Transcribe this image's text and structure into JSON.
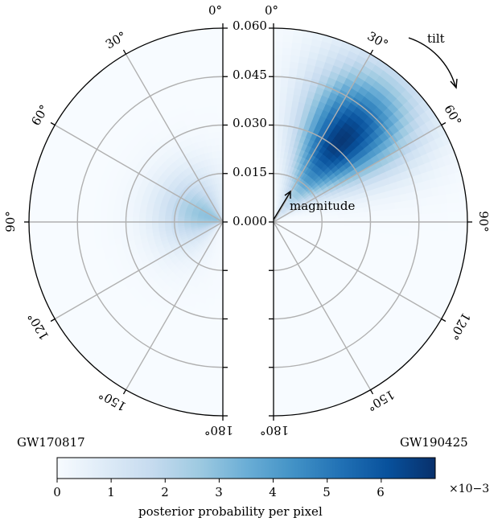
{
  "chart_data": {
    "type": "heatmap",
    "subtype": "half-polar",
    "panels": [
      {
        "name": "GW170817",
        "side": "left",
        "peak": {
          "magnitude": 0.005,
          "tilt_deg": 70
        },
        "peak_value": 2.9,
        "spread": {
          "magnitude": 0.011,
          "tilt_deg": 40
        }
      },
      {
        "name": "GW190425",
        "side": "right",
        "peak": {
          "magnitude": 0.033,
          "tilt_deg": 40
        },
        "peak_value": 6.8,
        "spread": {
          "magnitude": 0.016,
          "tilt_deg": 16
        }
      }
    ],
    "radial_axis": {
      "label": "magnitude",
      "range": [
        0,
        0.06
      ],
      "ticks": [
        "0.000",
        "0.015",
        "0.030",
        "0.045",
        "0.060"
      ],
      "tick_values": [
        0,
        0.015,
        0.03,
        0.045,
        0.06
      ]
    },
    "angular_axis": {
      "label": "tilt",
      "range_deg": [
        0,
        180
      ],
      "tick_values": [
        0,
        30,
        60,
        90,
        120,
        150,
        180
      ],
      "ticks": [
        "0°",
        "30°",
        "60°",
        "90°",
        "120°",
        "150°",
        "180°"
      ]
    },
    "colorbar": {
      "label": "posterior probability per pixel",
      "range": [
        0,
        7
      ],
      "ticks": [
        "0",
        "1",
        "2",
        "3",
        "4",
        "5",
        "6"
      ],
      "tick_values": [
        0,
        1,
        2,
        3,
        4,
        5,
        6
      ],
      "multiplier": "×10−3",
      "colormap": [
        "#f7fbff",
        "#deebf7",
        "#c6dbef",
        "#9ecae1",
        "#6baed6",
        "#4292c6",
        "#2171b5",
        "#08519c",
        "#08306b"
      ]
    },
    "grid": true
  }
}
